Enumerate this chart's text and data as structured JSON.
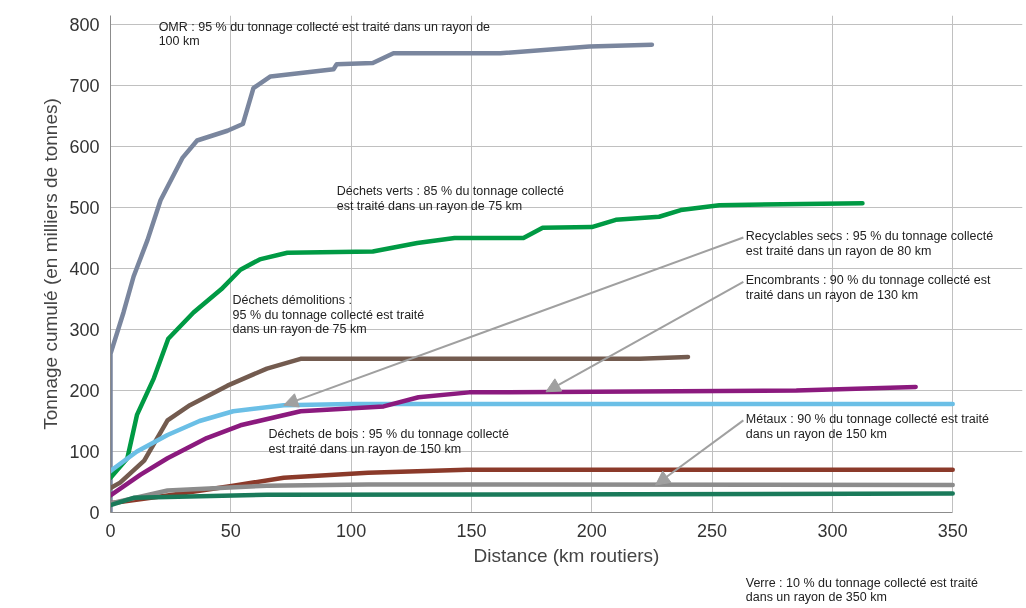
{
  "chart_data": {
    "type": "line",
    "xlabel": "Distance (km routiers)",
    "ylabel": "Tonnage cumulé (en milliers de tonnes)",
    "xlim": [
      0,
      379
    ],
    "ylim": [
      0,
      815
    ],
    "xticks": [
      0,
      50,
      100,
      150,
      200,
      250,
      300,
      350
    ],
    "yticks": [
      0,
      100,
      200,
      300,
      400,
      500,
      600,
      700,
      800
    ],
    "grid": true,
    "marker": "none",
    "line_style": "solid",
    "series": [
      {
        "color": "#7a869e",
        "x": [
          0,
          0,
          5.4,
          9.6,
          15.4,
          20.8,
          30,
          36,
          48.6,
          55,
          59.4,
          66.5,
          92.7,
          94,
          109,
          117.6,
          162,
          199,
          225
        ],
        "values": [
          0,
          260,
          328,
          387,
          447,
          512,
          582,
          610,
          626,
          637,
          696,
          715,
          727,
          735,
          737,
          753,
          753,
          764,
          767
        ]
      },
      {
        "color": "#009a44",
        "x": [
          0,
          7,
          11,
          18,
          24,
          34.5,
          46,
          54,
          62,
          73.5,
          109,
          127.5,
          143,
          171.6,
          179.6,
          200,
          210,
          228,
          237,
          253,
          312.5
        ],
        "values": [
          57,
          89,
          160,
          220,
          285,
          328,
          366,
          398,
          415,
          426,
          428,
          442,
          450,
          450,
          467,
          468,
          480,
          485,
          496,
          504,
          507
        ]
      },
      {
        "color": "#735b4f",
        "x": [
          0,
          4,
          14,
          23.7,
          33,
          48.6,
          65,
          79,
          220,
          240
        ],
        "values": [
          40,
          49,
          85,
          151,
          176,
          208,
          236,
          252,
          252,
          255
        ]
      },
      {
        "color": "#6bbfe6",
        "x": [
          0,
          11,
          23.7,
          37,
          51,
          72,
          100,
          350
        ],
        "values": [
          68,
          100,
          127,
          150,
          166,
          176,
          178,
          178
        ]
      },
      {
        "color": "#8b1a7e",
        "x": [
          0,
          12.5,
          23.7,
          40,
          54,
          79,
          113.5,
          128,
          149,
          285,
          334.6
        ],
        "values": [
          28,
          62,
          89,
          122,
          143,
          166,
          174,
          189,
          197,
          200,
          206
        ]
      },
      {
        "color": "#8b3a2a",
        "x": [
          0,
          23.7,
          51,
          72,
          107,
          148,
          350
        ],
        "values": [
          15,
          28,
          44,
          57,
          65,
          70,
          70
        ]
      },
      {
        "color": "#8c8c8c",
        "x": [
          0,
          23.7,
          65,
          107,
          350
        ],
        "values": [
          15,
          36,
          44,
          46,
          45
        ]
      },
      {
        "color": "#1a7a5a",
        "x": [
          0,
          9.6,
          65,
          350
        ],
        "values": [
          12,
          24,
          29,
          31
        ]
      }
    ],
    "annotations": [
      "OMR : 95 % du tonnage collecté est traité dans un rayon de 100 km",
      "Déchets verts : 85 % du tonnage collecté est traité dans un rayon de 75 km",
      "Déchets démolitions : 95 % du tonnage collecté est traité dans un rayon de 75 km",
      {
        "text": "Recyclables secs : 95 % du tonnage collecté est traité dans un rayon de 80 km",
        "x": 72,
        "y": 176
      },
      {
        "text": "Encombrants : 90 % du tonnage collecté est traité dans un rayon de 130 km",
        "x": 181,
        "y": 198
      },
      "Déchets de bois : 95 % du tonnage collecté est traité dans un rayon de 150 km",
      {
        "text": "Métaux : 90 % du tonnage collecté est traité dans un rayon de 150 km",
        "x": 226.5,
        "y": 45
      },
      "Verre : 10 % du tonnage collecté est traité dans un rayon de 350 km"
    ]
  }
}
